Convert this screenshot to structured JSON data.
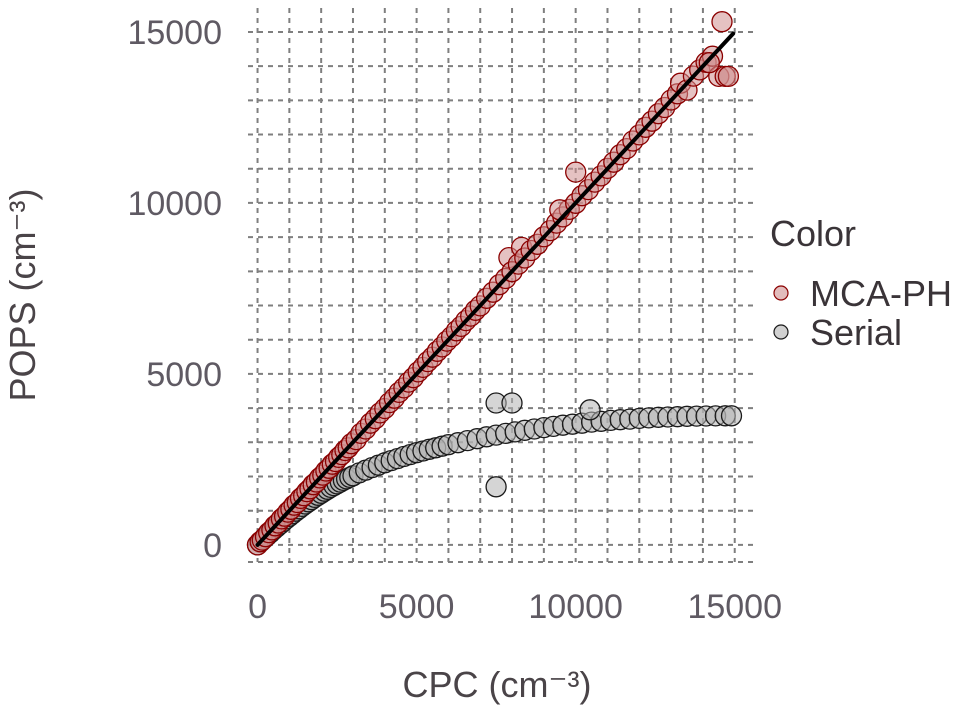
{
  "chart_data": {
    "type": "scatter",
    "xlabel": "CPC (cm⁻³)",
    "ylabel": "POPS (cm⁻³)",
    "xlim": [
      -300,
      15700
    ],
    "ylim": [
      -500,
      15700
    ],
    "x_ticks": [
      0,
      5000,
      10000,
      15000
    ],
    "x_tick_labels": [
      "0",
      "5000",
      "10000",
      "15000"
    ],
    "y_ticks": [
      0,
      5000,
      10000,
      15000
    ],
    "y_tick_labels": [
      "0",
      "5000",
      "10000",
      "15000"
    ],
    "grid": true,
    "grid_style": "dashed",
    "legend": {
      "title": "Color",
      "position": "right",
      "entries": [
        "MCA-PH",
        "Serial"
      ]
    },
    "fit_line": {
      "x": [
        0,
        14950
      ],
      "y": [
        0,
        14950
      ],
      "color": "#000000"
    },
    "series": [
      {
        "name": "MCA-PH",
        "fill": "#cf8f8f",
        "stroke": "#8b0000",
        "points": [
          [
            0,
            0
          ],
          [
            80,
            90
          ],
          [
            150,
            140
          ],
          [
            250,
            240
          ],
          [
            350,
            360
          ],
          [
            450,
            440
          ],
          [
            550,
            560
          ],
          [
            650,
            640
          ],
          [
            750,
            760
          ],
          [
            850,
            840
          ],
          [
            950,
            960
          ],
          [
            1050,
            1040
          ],
          [
            1150,
            1160
          ],
          [
            1250,
            1240
          ],
          [
            1350,
            1360
          ],
          [
            1450,
            1440
          ],
          [
            1550,
            1560
          ],
          [
            1650,
            1640
          ],
          [
            1750,
            1760
          ],
          [
            1850,
            1840
          ],
          [
            1950,
            1960
          ],
          [
            2050,
            2040
          ],
          [
            2150,
            2160
          ],
          [
            2250,
            2240
          ],
          [
            2350,
            2360
          ],
          [
            2450,
            2440
          ],
          [
            2550,
            2560
          ],
          [
            2650,
            2640
          ],
          [
            2750,
            2760
          ],
          [
            2850,
            2840
          ],
          [
            2950,
            2960
          ],
          [
            3100,
            3080
          ],
          [
            3250,
            3260
          ],
          [
            3400,
            3390
          ],
          [
            3550,
            3560
          ],
          [
            3700,
            3690
          ],
          [
            3850,
            3860
          ],
          [
            4000,
            3990
          ],
          [
            4150,
            4160
          ],
          [
            4300,
            4290
          ],
          [
            4450,
            4460
          ],
          [
            4600,
            4590
          ],
          [
            4750,
            4760
          ],
          [
            4900,
            4890
          ],
          [
            5050,
            5060
          ],
          [
            5200,
            5190
          ],
          [
            5350,
            5360
          ],
          [
            5500,
            5490
          ],
          [
            5650,
            5660
          ],
          [
            5800,
            5790
          ],
          [
            5950,
            5960
          ],
          [
            6100,
            6090
          ],
          [
            6250,
            6260
          ],
          [
            6400,
            6390
          ],
          [
            6550,
            6560
          ],
          [
            6700,
            6690
          ],
          [
            6850,
            6860
          ],
          [
            7000,
            6990
          ],
          [
            7200,
            7210
          ],
          [
            7400,
            7390
          ],
          [
            7600,
            7610
          ],
          [
            7800,
            7790
          ],
          [
            7900,
            8400
          ],
          [
            8000,
            7990
          ],
          [
            8200,
            8210
          ],
          [
            8300,
            8700
          ],
          [
            8400,
            8390
          ],
          [
            8600,
            8610
          ],
          [
            8800,
            8790
          ],
          [
            9000,
            9010
          ],
          [
            9200,
            9190
          ],
          [
            9400,
            9410
          ],
          [
            9600,
            9590
          ],
          [
            9800,
            9810
          ],
          [
            9500,
            9800
          ],
          [
            10000,
            9990
          ],
          [
            10200,
            10210
          ],
          [
            10000,
            10900
          ],
          [
            10400,
            10390
          ],
          [
            10600,
            10610
          ],
          [
            10800,
            10790
          ],
          [
            11000,
            11010
          ],
          [
            11200,
            11190
          ],
          [
            11400,
            11410
          ],
          [
            11600,
            11590
          ],
          [
            11800,
            11810
          ],
          [
            12000,
            11990
          ],
          [
            12200,
            12210
          ],
          [
            12400,
            12390
          ],
          [
            12600,
            12610
          ],
          [
            12800,
            12790
          ],
          [
            13000,
            13010
          ],
          [
            13200,
            13190
          ],
          [
            13300,
            13500
          ],
          [
            13500,
            13300
          ],
          [
            13700,
            13710
          ],
          [
            13900,
            13890
          ],
          [
            14100,
            14110
          ],
          [
            14300,
            14290
          ],
          [
            14500,
            13700
          ],
          [
            14600,
            15300
          ],
          [
            14700,
            13700
          ],
          [
            14800,
            13700
          ],
          [
            14200,
            14100
          ]
        ]
      },
      {
        "name": "Serial",
        "fill": "#b3b3b3",
        "stroke": "#1a1a1a",
        "points": [
          [
            0,
            0
          ],
          [
            100,
            95
          ],
          [
            200,
            185
          ],
          [
            300,
            270
          ],
          [
            400,
            355
          ],
          [
            500,
            440
          ],
          [
            600,
            520
          ],
          [
            700,
            600
          ],
          [
            800,
            680
          ],
          [
            900,
            760
          ],
          [
            1000,
            835
          ],
          [
            1100,
            910
          ],
          [
            1200,
            985
          ],
          [
            1300,
            1055
          ],
          [
            1400,
            1125
          ],
          [
            1500,
            1195
          ],
          [
            1600,
            1260
          ],
          [
            1700,
            1325
          ],
          [
            1800,
            1390
          ],
          [
            1900,
            1450
          ],
          [
            2000,
            1510
          ],
          [
            2100,
            1570
          ],
          [
            2200,
            1625
          ],
          [
            2300,
            1680
          ],
          [
            2400,
            1735
          ],
          [
            2500,
            1785
          ],
          [
            2600,
            1835
          ],
          [
            2700,
            1885
          ],
          [
            2800,
            1930
          ],
          [
            2900,
            1975
          ],
          [
            3000,
            2020
          ],
          [
            3200,
            2105
          ],
          [
            3400,
            2185
          ],
          [
            3600,
            2260
          ],
          [
            3800,
            2330
          ],
          [
            4000,
            2400
          ],
          [
            4200,
            2465
          ],
          [
            4400,
            2525
          ],
          [
            4600,
            2585
          ],
          [
            4800,
            2640
          ],
          [
            5000,
            2695
          ],
          [
            5200,
            2745
          ],
          [
            5400,
            2795
          ],
          [
            5600,
            2840
          ],
          [
            5800,
            2885
          ],
          [
            6000,
            2930
          ],
          [
            6300,
            2990
          ],
          [
            6600,
            3050
          ],
          [
            6900,
            3105
          ],
          [
            7200,
            3160
          ],
          [
            7500,
            3210
          ],
          [
            7800,
            3260
          ],
          [
            8100,
            3305
          ],
          [
            8400,
            3350
          ],
          [
            8700,
            3390
          ],
          [
            9000,
            3430
          ],
          [
            9300,
            3465
          ],
          [
            9600,
            3500
          ],
          [
            9900,
            3530
          ],
          [
            10200,
            3560
          ],
          [
            10500,
            3590
          ],
          [
            10800,
            3615
          ],
          [
            11100,
            3640
          ],
          [
            11400,
            3660
          ],
          [
            11700,
            3680
          ],
          [
            12000,
            3700
          ],
          [
            12300,
            3715
          ],
          [
            12600,
            3730
          ],
          [
            12900,
            3740
          ],
          [
            13200,
            3750
          ],
          [
            13500,
            3760
          ],
          [
            13800,
            3765
          ],
          [
            14100,
            3770
          ],
          [
            14400,
            3772
          ],
          [
            14700,
            3775
          ],
          [
            14900,
            3775
          ],
          [
            7500,
            1700
          ],
          [
            10450,
            3950
          ],
          [
            7500,
            4150
          ],
          [
            8000,
            4150
          ]
        ]
      }
    ]
  }
}
